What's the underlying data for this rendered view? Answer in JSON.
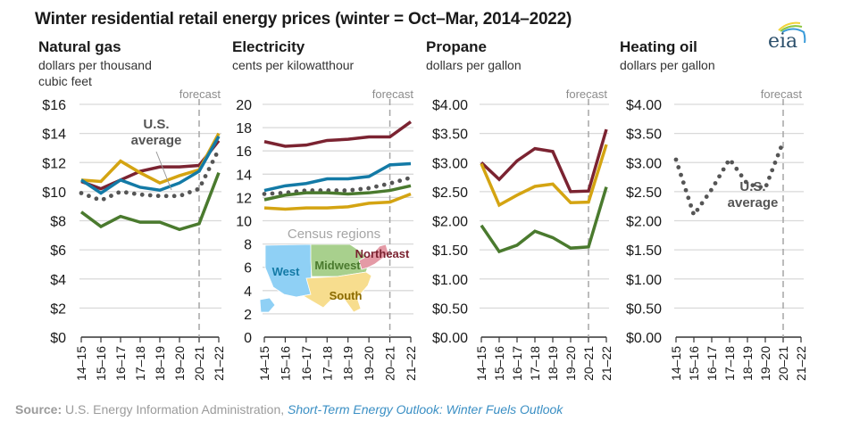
{
  "chart_data": {
    "type": "line",
    "title": "Winter residential retail energy prices (winter = Oct–Mar, 2014–2022)",
    "categories": [
      "14–15",
      "15–16",
      "16–17",
      "17–18",
      "18–19",
      "19–20",
      "20–21",
      "21–22"
    ],
    "forecast_label": "forecast",
    "forecast_start": "20–21",
    "colors": {
      "Northeast": "#7b2331",
      "Midwest": "#4a7a2e",
      "South": "#d4a412",
      "West": "#137aa6",
      "U.S. average": "#555555"
    },
    "panels": [
      {
        "title": "Natural gas",
        "unit": "dollars per thousand cubic feet",
        "unit_lines": [
          "dollars per thousand",
          "cubic feet"
        ],
        "ylim": [
          0,
          16
        ],
        "yticks": [
          0,
          2,
          4,
          6,
          8,
          10,
          12,
          14,
          16
        ],
        "ytick_labels": [
          "$0",
          "$2",
          "$4",
          "$6",
          "$8",
          "$10",
          "$12",
          "$14",
          "$16"
        ],
        "series": [
          {
            "name": "Northeast",
            "values": [
              10.7,
              10.2,
              10.8,
              11.4,
              11.7,
              11.7,
              11.8,
              13.5
            ]
          },
          {
            "name": "South",
            "values": [
              10.8,
              10.7,
              12.1,
              11.3,
              10.6,
              11.1,
              11.5,
              14.0
            ]
          },
          {
            "name": "West",
            "values": [
              10.8,
              9.9,
              10.8,
              10.3,
              10.1,
              10.6,
              11.4,
              13.8
            ]
          },
          {
            "name": "U.S. average",
            "values": [
              9.9,
              9.4,
              10.0,
              9.8,
              9.7,
              9.7,
              10.2,
              12.9
            ],
            "dotted": true
          },
          {
            "name": "Midwest",
            "values": [
              8.6,
              7.6,
              8.3,
              7.9,
              7.9,
              7.4,
              7.8,
              11.3
            ]
          }
        ],
        "annotation": {
          "text_lines": [
            "U.S.",
            "average"
          ]
        }
      },
      {
        "title": "Electricity",
        "unit": "cents per kilowatthour",
        "unit_lines": [
          "cents per kilowatthour"
        ],
        "ylim": [
          0,
          20
        ],
        "yticks": [
          0,
          2,
          4,
          6,
          8,
          10,
          12,
          14,
          16,
          18,
          20
        ],
        "ytick_labels": [
          "0",
          "2",
          "4",
          "6",
          "8",
          "10",
          "12",
          "14",
          "16",
          "18",
          "20"
        ],
        "series": [
          {
            "name": "Northeast",
            "values": [
              16.8,
              16.4,
              16.5,
              16.9,
              17.0,
              17.2,
              17.2,
              18.5
            ]
          },
          {
            "name": "West",
            "values": [
              12.6,
              13.0,
              13.2,
              13.6,
              13.6,
              13.8,
              14.8,
              14.9
            ]
          },
          {
            "name": "U.S. average",
            "values": [
              12.3,
              12.4,
              12.6,
              12.6,
              12.6,
              12.8,
              13.2,
              13.7
            ],
            "dotted": true
          },
          {
            "name": "Midwest",
            "values": [
              11.8,
              12.2,
              12.4,
              12.4,
              12.3,
              12.4,
              12.6,
              13.0
            ]
          },
          {
            "name": "South",
            "values": [
              11.1,
              11.0,
              11.1,
              11.1,
              11.2,
              11.5,
              11.6,
              12.3
            ]
          }
        ],
        "inset_map": {
          "title": "Census regions",
          "regions": [
            {
              "name": "West",
              "label_color": "#137aa6",
              "fill": "#8fd0f5"
            },
            {
              "name": "Midwest",
              "label_color": "#4a7a2e",
              "fill": "#a8d08d"
            },
            {
              "name": "Northeast",
              "label_color": "#7b2331",
              "fill": "#e49aa6"
            },
            {
              "name": "South",
              "label_color": "#8a6a00",
              "fill": "#f7dd8e"
            }
          ]
        }
      },
      {
        "title": "Propane",
        "unit": "dollars per gallon",
        "unit_lines": [
          "dollars per gallon"
        ],
        "ylim": [
          0,
          4
        ],
        "yticks": [
          0,
          0.5,
          1,
          1.5,
          2,
          2.5,
          3,
          3.5,
          4
        ],
        "ytick_labels": [
          "$0.00",
          "$0.50",
          "$1.00",
          "$1.50",
          "$2.00",
          "$2.50",
          "$3.00",
          "$3.50",
          "$4.00"
        ],
        "series": [
          {
            "name": "Northeast",
            "values": [
              3.0,
              2.71,
              3.03,
              3.24,
              3.19,
              2.5,
              2.51,
              3.57
            ]
          },
          {
            "name": "South",
            "values": [
              2.98,
              2.27,
              2.44,
              2.59,
              2.63,
              2.31,
              2.32,
              3.31
            ]
          },
          {
            "name": "Midwest",
            "values": [
              1.92,
              1.47,
              1.58,
              1.82,
              1.71,
              1.53,
              1.55,
              2.58
            ]
          }
        ]
      },
      {
        "title": "Heating oil",
        "unit": "dollars per gallon",
        "unit_lines": [
          "dollars per gallon"
        ],
        "ylim": [
          0,
          4
        ],
        "yticks": [
          0,
          0.5,
          1,
          1.5,
          2,
          2.5,
          3,
          3.5,
          4
        ],
        "ytick_labels": [
          "$0.00",
          "$0.50",
          "$1.00",
          "$1.50",
          "$2.00",
          "$2.50",
          "$3.00",
          "$3.50",
          "$4.00"
        ],
        "series": [
          {
            "name": "U.S. average",
            "values": [
              3.05,
              2.1,
              2.54,
              3.06,
              2.63,
              2.56,
              3.36,
              null
            ],
            "dotted": true
          }
        ],
        "annotation": {
          "text_lines": [
            "U.S.",
            "average"
          ]
        }
      }
    ]
  },
  "header": {
    "title": "Winter residential retail energy prices (winter = Oct–Mar, 2014–2022)",
    "logo_text": "eia"
  },
  "source": {
    "label": "Source:",
    "text": " U.S. Energy Information Administration, ",
    "link": "Short-Term Energy Outlook: Winter Fuels Outlook"
  }
}
